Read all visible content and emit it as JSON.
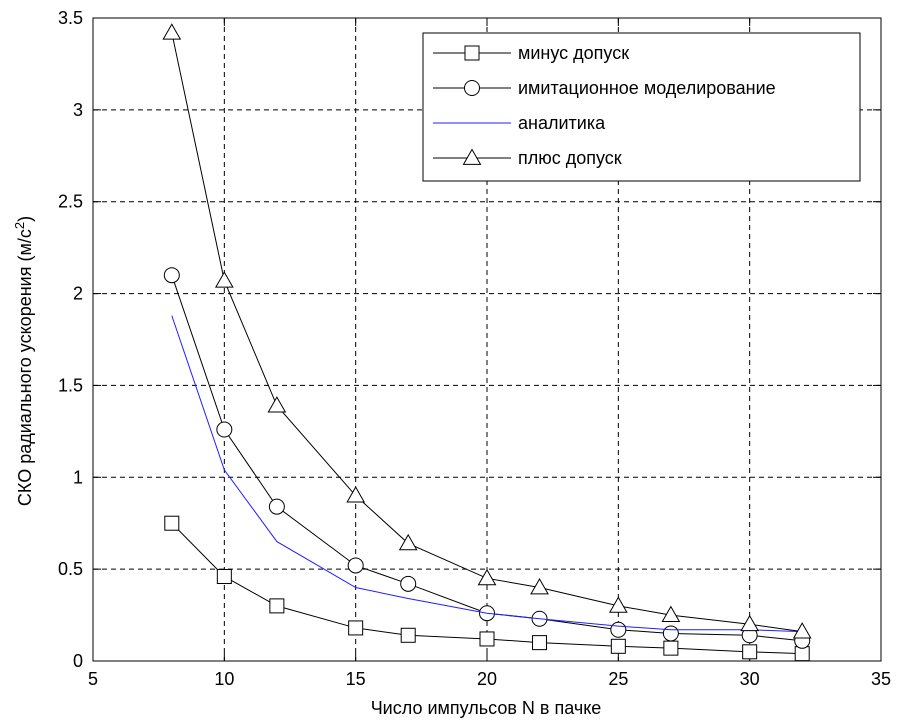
{
  "chart_data": {
    "type": "line",
    "xlabel": "Число импульсов N в пачке",
    "ylabel_main": "СКО радиального ускорения (м/с",
    "ylabel_sup": "2",
    "ylabel_end": ")",
    "xlim": [
      5,
      35
    ],
    "ylim": [
      0,
      3.5
    ],
    "xticks": [
      5,
      10,
      15,
      20,
      25,
      30,
      35
    ],
    "yticks": [
      0,
      0.5,
      1,
      1.5,
      2,
      2.5,
      3,
      3.5
    ],
    "xtick_labels": [
      "5",
      "10",
      "15",
      "20",
      "25",
      "30",
      "35"
    ],
    "ytick_labels": [
      "0",
      "0.5",
      "1",
      "1.5",
      "2",
      "2.5",
      "3",
      "3.5"
    ],
    "grid": true,
    "legend_position": "top-right",
    "series": [
      {
        "name": "минус допуск",
        "marker": "square",
        "color": "#000000",
        "x": [
          8,
          10,
          12,
          15,
          17,
          20,
          22,
          25,
          27,
          30,
          32
        ],
        "y": [
          0.75,
          0.46,
          0.3,
          0.18,
          0.14,
          0.12,
          0.1,
          0.08,
          0.07,
          0.05,
          0.04
        ]
      },
      {
        "name": "имитационное моделирование",
        "marker": "circle",
        "color": "#000000",
        "x": [
          8,
          10,
          12,
          15,
          17,
          20,
          22,
          25,
          27,
          30,
          32
        ],
        "y": [
          2.1,
          1.26,
          0.84,
          0.52,
          0.42,
          0.26,
          0.23,
          0.17,
          0.15,
          0.14,
          0.11
        ]
      },
      {
        "name": "аналитика",
        "marker": "none",
        "color": "#1f1fff",
        "x": [
          8,
          10,
          12,
          15,
          17,
          20,
          22,
          25,
          27,
          30,
          32
        ],
        "y": [
          1.88,
          1.04,
          0.65,
          0.4,
          0.34,
          0.26,
          0.23,
          0.19,
          0.17,
          0.17,
          0.16
        ]
      },
      {
        "name": "плюс допуск",
        "marker": "triangle",
        "color": "#000000",
        "x": [
          8,
          10,
          12,
          15,
          17,
          20,
          22,
          25,
          27,
          30,
          32
        ],
        "y": [
          3.42,
          2.07,
          1.39,
          0.9,
          0.64,
          0.45,
          0.4,
          0.3,
          0.25,
          0.2,
          0.16
        ]
      }
    ]
  }
}
